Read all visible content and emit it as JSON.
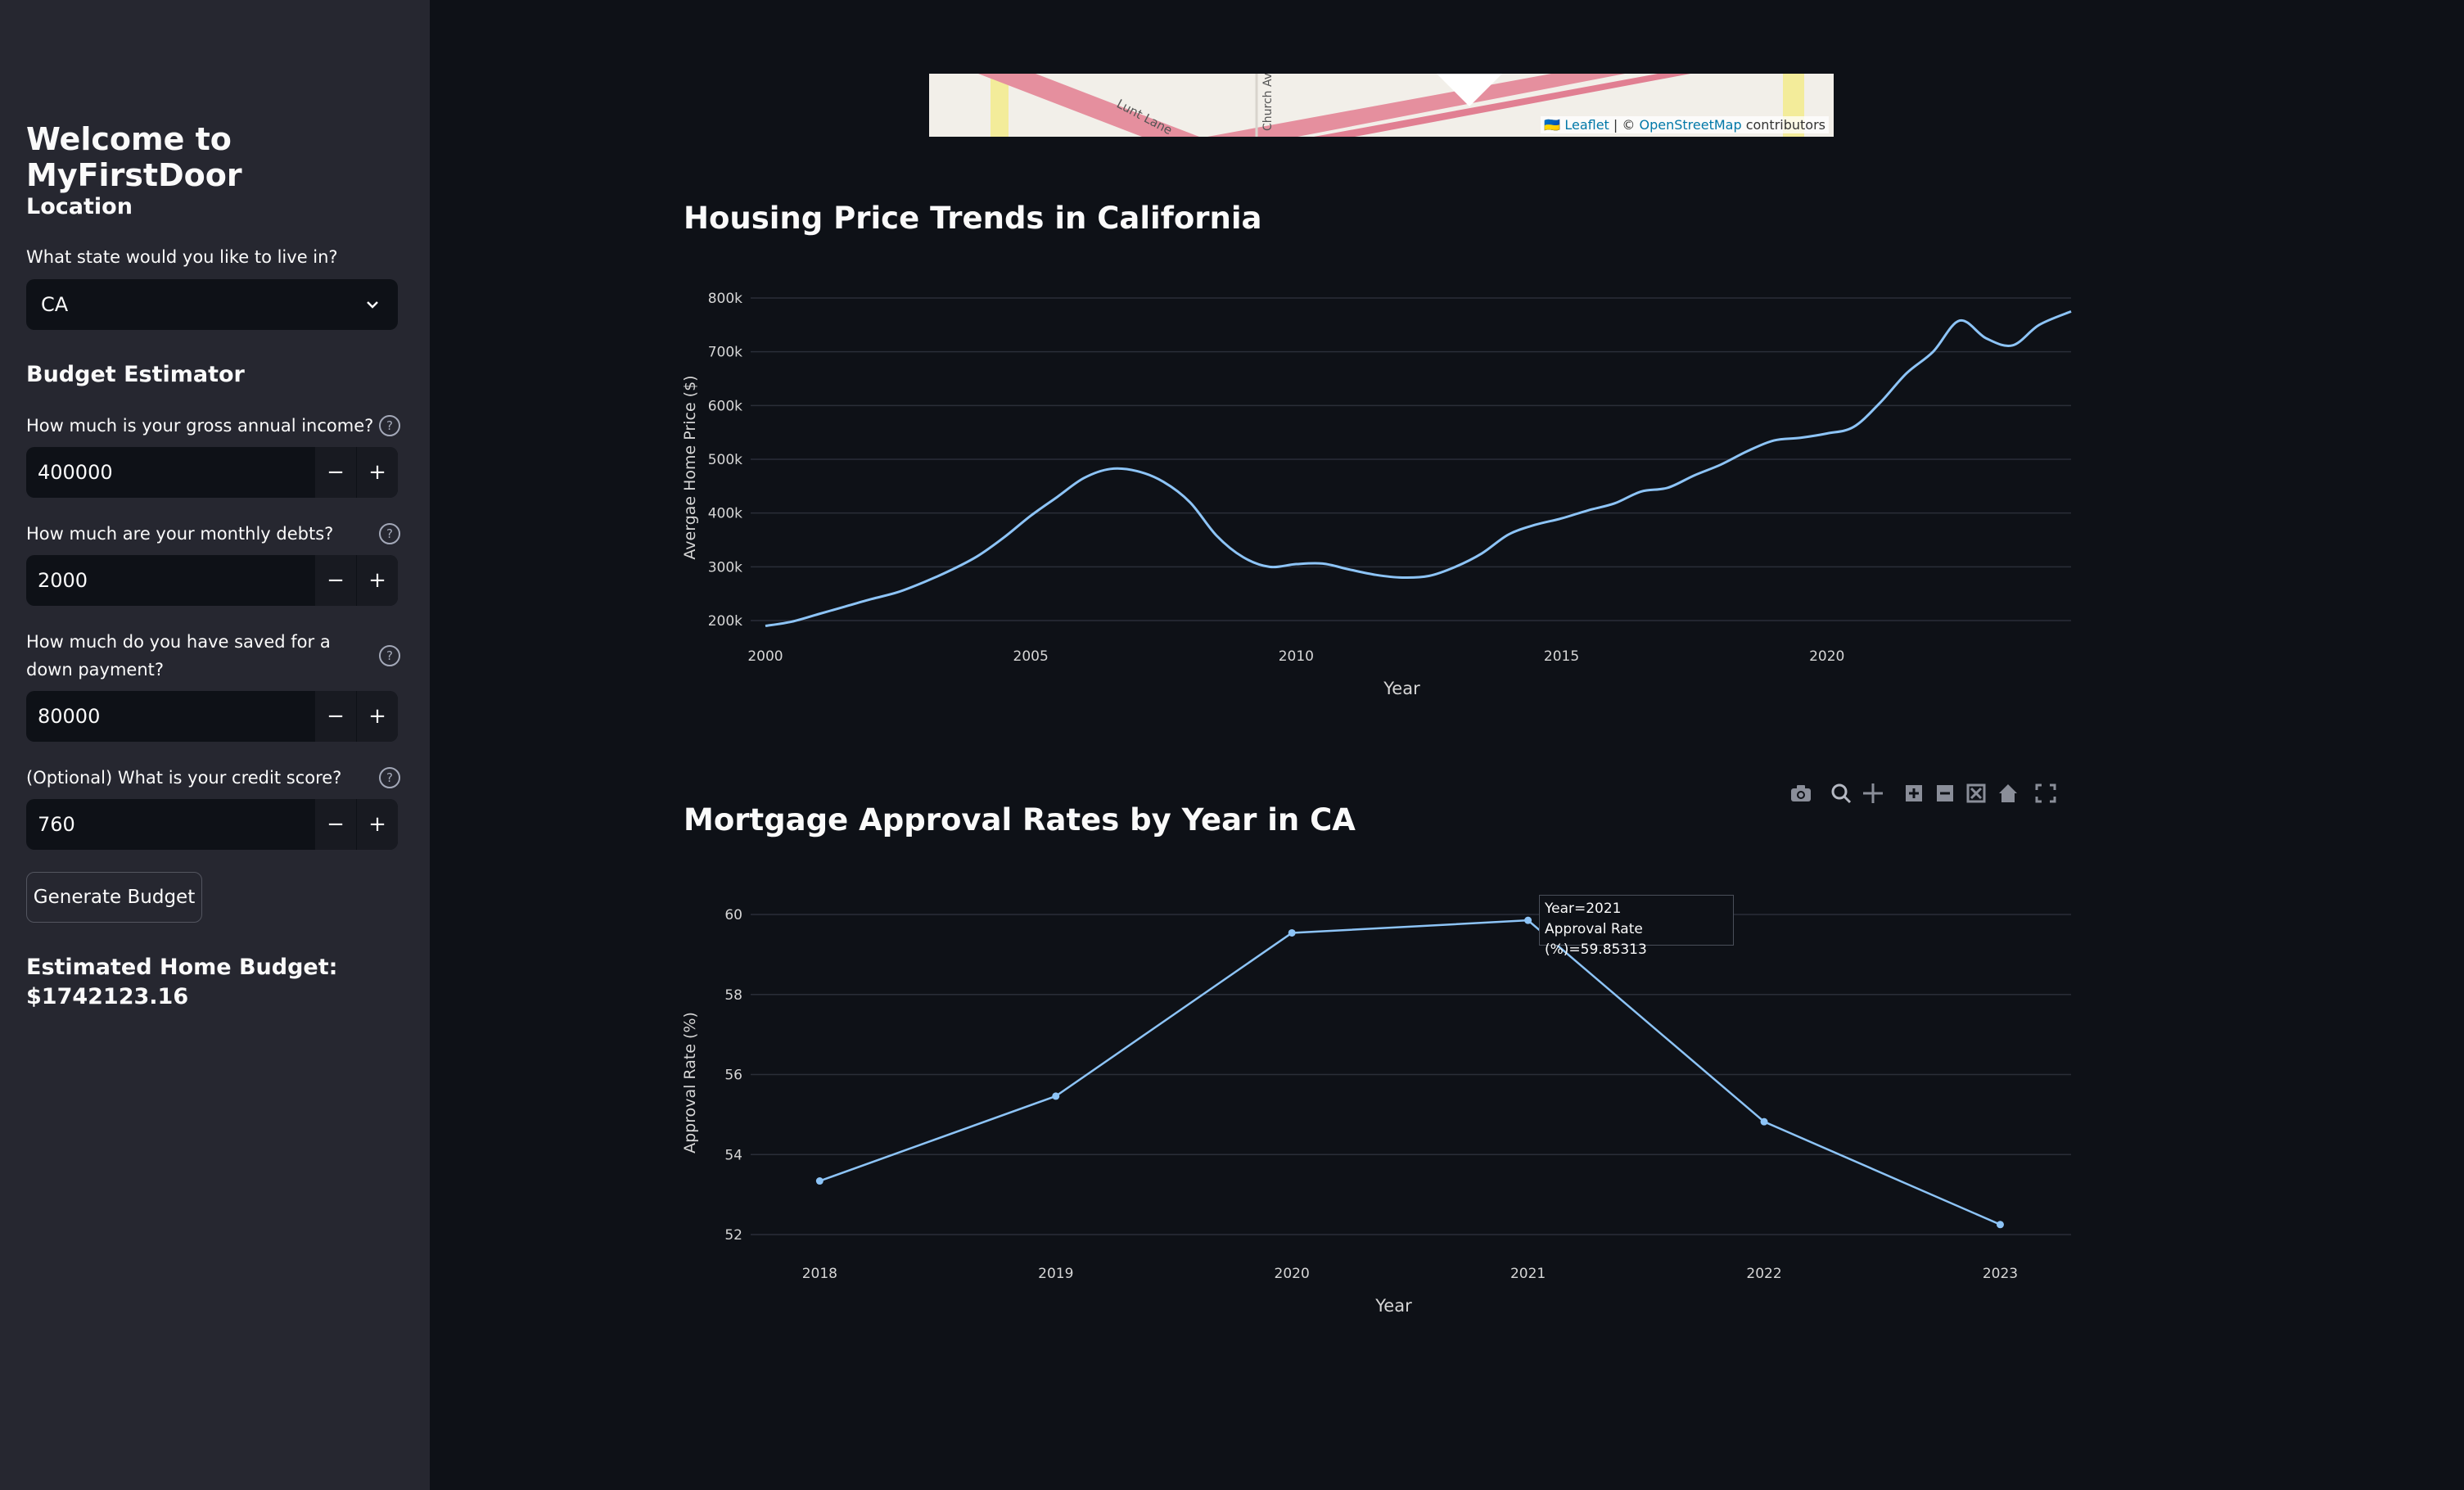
{
  "sidebar": {
    "title": "Welcome to MyFirstDoor",
    "location_heading": "Location",
    "state_label": "What state would you like to live in?",
    "state_value": "CA",
    "budget_heading": "Budget Estimator",
    "income_label": "How much is your gross annual income?",
    "income_value": "400000",
    "debts_label": "How much are your monthly debts?",
    "debts_value": "2000",
    "down_label": "How much do you have saved for a down payment?",
    "down_value": "80000",
    "credit_label": "(Optional) What is your credit score?",
    "credit_value": "760",
    "minus": "−",
    "plus": "+",
    "help": "?",
    "generate_button": "Generate Budget",
    "budget_result_label": "Estimated Home Budget:",
    "budget_result_value": "$1742123.16"
  },
  "map": {
    "attribution_prefix": "🇺🇦 Leaflet",
    "attribution_sep": " | © ",
    "attribution_osm": "OpenStreetMap",
    "attribution_suffix": " contributors",
    "street_1": "Lunt Lane",
    "street_2": "Church Av"
  },
  "main": {
    "housing_title": "Housing Price Trends in California",
    "mortgage_title": "Mortgage Approval Rates by Year in CA"
  },
  "colors": {
    "line": "#8dc4f7",
    "grid": "#2a2e38",
    "axis_text": "#d6d6d6"
  },
  "tooltip": {
    "line1": "Year=2021",
    "line2": "Approval Rate (%)=59.85313"
  },
  "modebar_icons": [
    "camera-icon",
    "zoom-icon",
    "pan-icon",
    "zoom-in-icon",
    "zoom-out-icon",
    "autoscale-icon",
    "reset-home-icon",
    "fullscreen-icon"
  ],
  "chart_data": [
    {
      "type": "line",
      "title": "Housing Price Trends in California",
      "xlabel": "Year",
      "ylabel": "Avergae Home Price ($)",
      "xlim": [
        2000,
        2024.6
      ],
      "ylim": [
        200000,
        800000
      ],
      "xticks": [
        2000,
        2005,
        2010,
        2015,
        2020
      ],
      "yticks": [
        200000,
        300000,
        400000,
        500000,
        600000,
        700000,
        800000
      ],
      "ytick_labels": [
        "200k",
        "300k",
        "400k",
        "500k",
        "600k",
        "700k",
        "800k"
      ],
      "grid": true,
      "x": [
        2000,
        2000.5,
        2001,
        2001.5,
        2002,
        2002.5,
        2003,
        2003.5,
        2004,
        2004.5,
        2005,
        2005.5,
        2006,
        2006.5,
        2007,
        2007.5,
        2008,
        2008.5,
        2009,
        2009.5,
        2010,
        2010.5,
        2011,
        2011.5,
        2012,
        2012.5,
        2013,
        2013.5,
        2014,
        2014.5,
        2015,
        2015.5,
        2016,
        2016.5,
        2017,
        2017.5,
        2018,
        2018.5,
        2019,
        2019.5,
        2020,
        2020.5,
        2021,
        2021.5,
        2022,
        2022.5,
        2023,
        2023.5,
        2024,
        2024.6
      ],
      "y": [
        190000,
        198000,
        212000,
        226000,
        240000,
        253000,
        272000,
        294000,
        320000,
        355000,
        395000,
        430000,
        465000,
        482000,
        478000,
        458000,
        420000,
        358000,
        318000,
        300000,
        305000,
        306000,
        295000,
        285000,
        280000,
        283000,
        300000,
        325000,
        360000,
        378000,
        390000,
        405000,
        418000,
        440000,
        447000,
        470000,
        490000,
        515000,
        535000,
        540000,
        548000,
        560000,
        605000,
        660000,
        700000,
        758000,
        725000,
        712000,
        750000,
        775000
      ]
    },
    {
      "type": "line",
      "title": "Mortgage Approval Rates by Year in CA",
      "xlabel": "Year",
      "ylabel": "Approval Rate (%)",
      "xlim": [
        2017.77,
        2023.3
      ],
      "ylim": [
        52,
        60
      ],
      "categories": [
        2018,
        2019,
        2020,
        2021,
        2022,
        2023
      ],
      "values": [
        53.34,
        55.46,
        59.54,
        59.85313,
        54.82,
        52.25
      ],
      "yticks": [
        52,
        54,
        56,
        58,
        60
      ],
      "markers": true,
      "grid": true
    }
  ]
}
